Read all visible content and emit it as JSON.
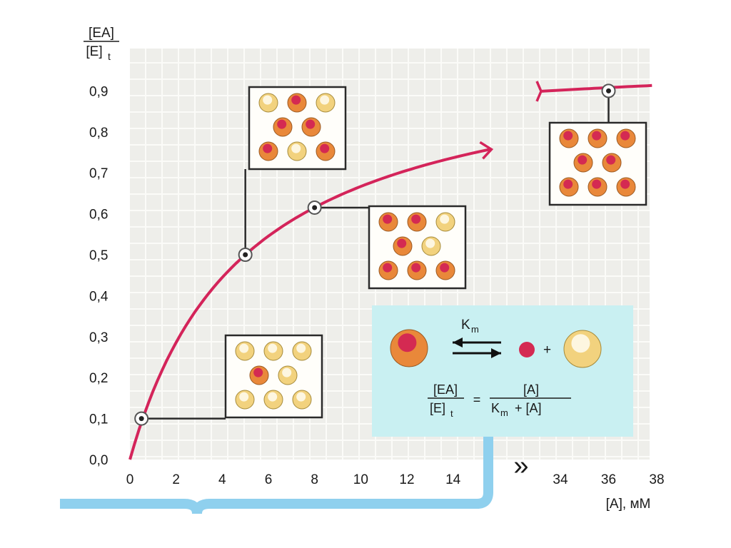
{
  "chart_data": {
    "type": "line",
    "ylabel_num": "[EA]",
    "ylabel_den": "[E]",
    "ylabel_den_sub": "t",
    "xlabel": "[A], мМ",
    "x_ticks_left": [
      "0",
      "2",
      "4",
      "6",
      "8",
      "10",
      "12",
      "14"
    ],
    "x_ticks_right": [
      "34",
      "36",
      "38"
    ],
    "y_ticks": [
      "0,0",
      "0,1",
      "0,2",
      "0,3",
      "0,4",
      "0,5",
      "0,6",
      "0,7",
      "0,8",
      "0,9"
    ],
    "axis_break": "»",
    "km": 5,
    "x_left_range": [
      0,
      15
    ],
    "x_right_range": [
      33,
      38
    ],
    "ylim": [
      0,
      1
    ],
    "points": [
      {
        "x": 0.5,
        "y": 0.1
      },
      {
        "x": 5,
        "y": 0.5
      },
      {
        "x": 8,
        "y": 0.615
      },
      {
        "x": 36,
        "y": 0.9
      }
    ],
    "occupancy_panels": [
      {
        "point": 0,
        "bound": 1,
        "total": 9
      },
      {
        "point": 1,
        "bound": 5,
        "total": 9
      },
      {
        "point": 2,
        "bound": 6,
        "total": 9
      },
      {
        "point": 3,
        "bound": 8,
        "total": 9
      }
    ],
    "inset": {
      "km_label": "K",
      "km_sub": "m",
      "plus": "+",
      "eq_lhs_num": "[EA]",
      "eq_lhs_den": "[E]",
      "eq_lhs_den_sub": "t",
      "eq_sign": "=",
      "eq_rhs_num": "[A]",
      "eq_rhs_den_k": "K",
      "eq_rhs_den_sub": "m",
      "eq_rhs_den_rest": "+ [A]"
    },
    "colors": {
      "curve": "#d4245a",
      "grid_bg": "#eeeeea",
      "grid_line": "#fbfbf8",
      "inset_bg": "#c9f0f2",
      "brace": "#8fd0ee",
      "bound_outer": "#e9883a",
      "bound_inner": "#d42a52",
      "free_outer": "#f2d27e",
      "free_inner": "#fdf6e0"
    }
  }
}
